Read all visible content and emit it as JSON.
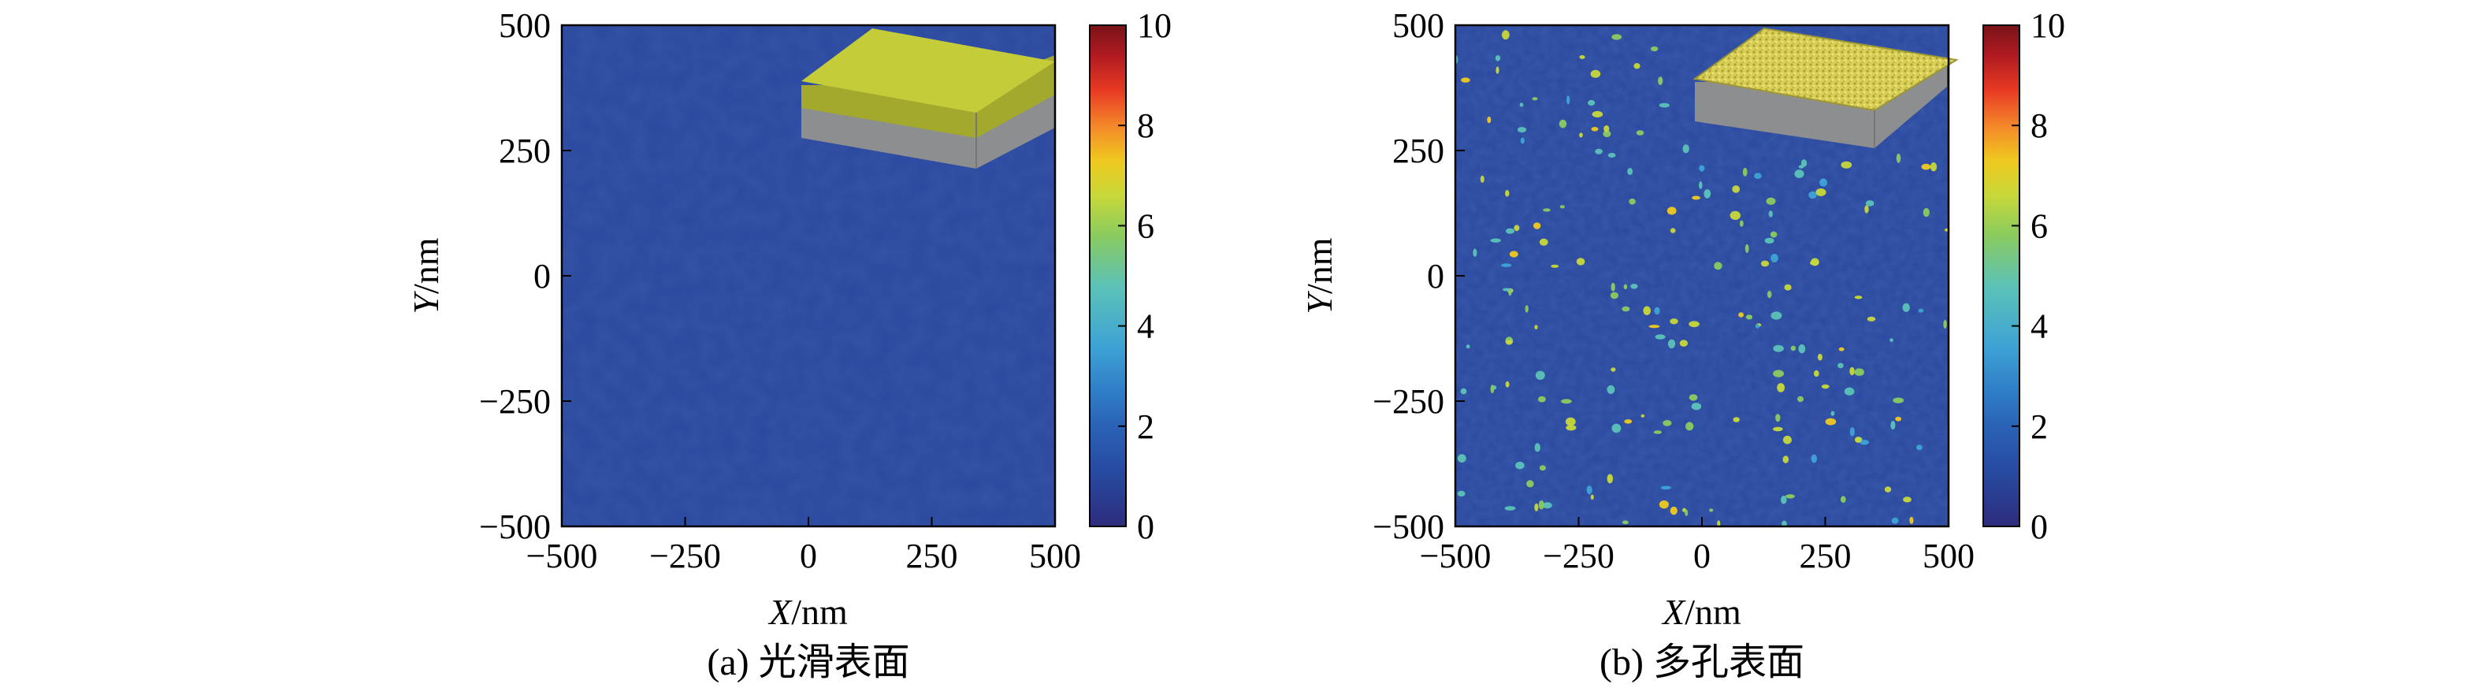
{
  "colors": {
    "colormap": [
      "#2f2c7d",
      "#27489e",
      "#2a62b6",
      "#2f7ec7",
      "#3ea3d4",
      "#5cc2b7",
      "#8acb5f",
      "#c8d83a",
      "#f0c91f",
      "#f4862a",
      "#e83a24",
      "#b01a20",
      "#781318"
    ],
    "background_low": "#2a489e",
    "inset_top": "#c4cc3a",
    "inset_side": "#9aa230",
    "inset_base": "#8c8c8c"
  },
  "chart_data": [
    {
      "type": "heatmap",
      "panel": "a",
      "caption": "(a) 光滑表面",
      "xlabel": {
        "var": "X",
        "unit": "/nm"
      },
      "ylabel": {
        "var": "Y",
        "unit": "/nm"
      },
      "xlim": [
        -500,
        500
      ],
      "ylim": [
        -500,
        500
      ],
      "x_ticks": [
        "−500",
        "−250",
        "0",
        "250",
        "500"
      ],
      "y_ticks": [
        "500",
        "250",
        "0",
        "−250",
        "−500"
      ],
      "colorbar": {
        "min": 0,
        "max": 10,
        "ticks": [
          "10",
          "8",
          "6",
          "4",
          "2",
          "0"
        ]
      },
      "field": {
        "base_value": 1.2,
        "description_values": "uniform low height (~1–1.5) across entire surface"
      },
      "inset": "smooth-slab-3d"
    },
    {
      "type": "heatmap",
      "panel": "b",
      "caption": "(b) 多孔表面",
      "xlabel": {
        "var": "X",
        "unit": "/nm"
      },
      "ylabel": {
        "var": "Y",
        "unit": "/nm"
      },
      "xlim": [
        -500,
        500
      ],
      "ylim": [
        -500,
        500
      ],
      "x_ticks": [
        "−500",
        "−250",
        "0",
        "250",
        "500"
      ],
      "y_ticks": [
        "500",
        "250",
        "0",
        "−250",
        "−500"
      ],
      "colorbar": {
        "min": 0,
        "max": 10,
        "ticks": [
          "10",
          "8",
          "6",
          "4",
          "2",
          "0"
        ]
      },
      "field": {
        "base_value": 1.2,
        "spot_value_range": [
          3.5,
          6.5
        ],
        "spot_count": 230
      },
      "inset": "porous-slab-3d"
    }
  ]
}
